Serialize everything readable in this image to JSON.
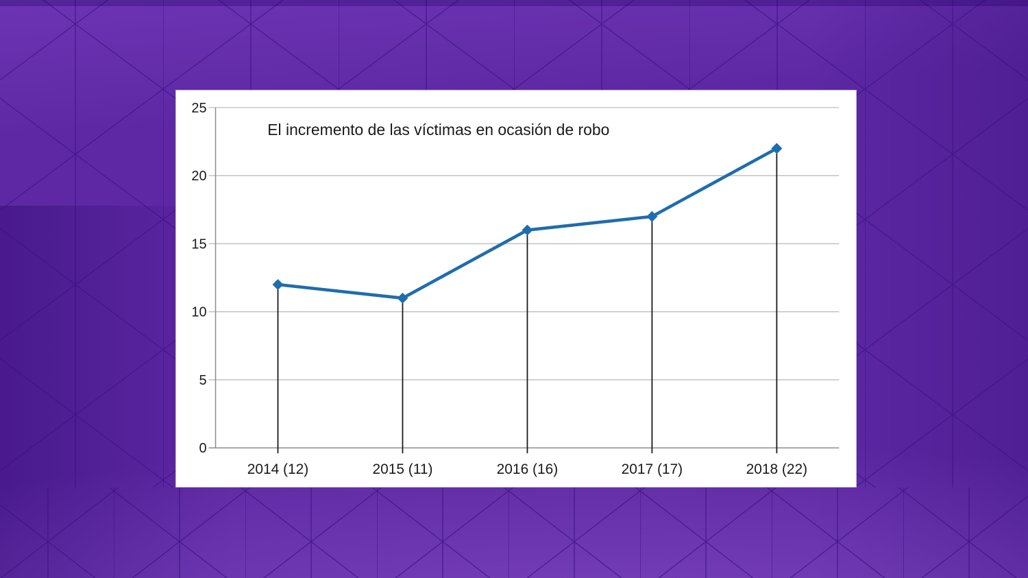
{
  "background": {
    "base_color": "#5E28A4",
    "facet_line_color": "#3A0F82",
    "light_facet_color": "#7B40C1",
    "dark_edge_color": "#2E0870",
    "floor_sheen_color": "#9A63D8",
    "panel_color": "#FFFFFF"
  },
  "chart_data": {
    "type": "line",
    "title": "El incremento de las víctimas en ocasión de robo",
    "categories": [
      "2014 (12)",
      "2015 (11)",
      "2016 (16)",
      "2017 (17)",
      "2018 (22)"
    ],
    "values": [
      12,
      11,
      16,
      17,
      22
    ],
    "xlabel": "",
    "ylabel": "",
    "ylim": [
      0,
      25
    ],
    "yticks": [
      0,
      5,
      10,
      15,
      20,
      25
    ],
    "grid": true,
    "legend_position": "none",
    "droplines": true,
    "marker": "diamond",
    "colors": {
      "line": "#1E6DAE",
      "marker": "#1E6DAE",
      "gridline": "#BDBDBD",
      "axis": "#8C8C8C",
      "dropline": "#1A1A1A",
      "text": "#1A1A1A"
    }
  }
}
